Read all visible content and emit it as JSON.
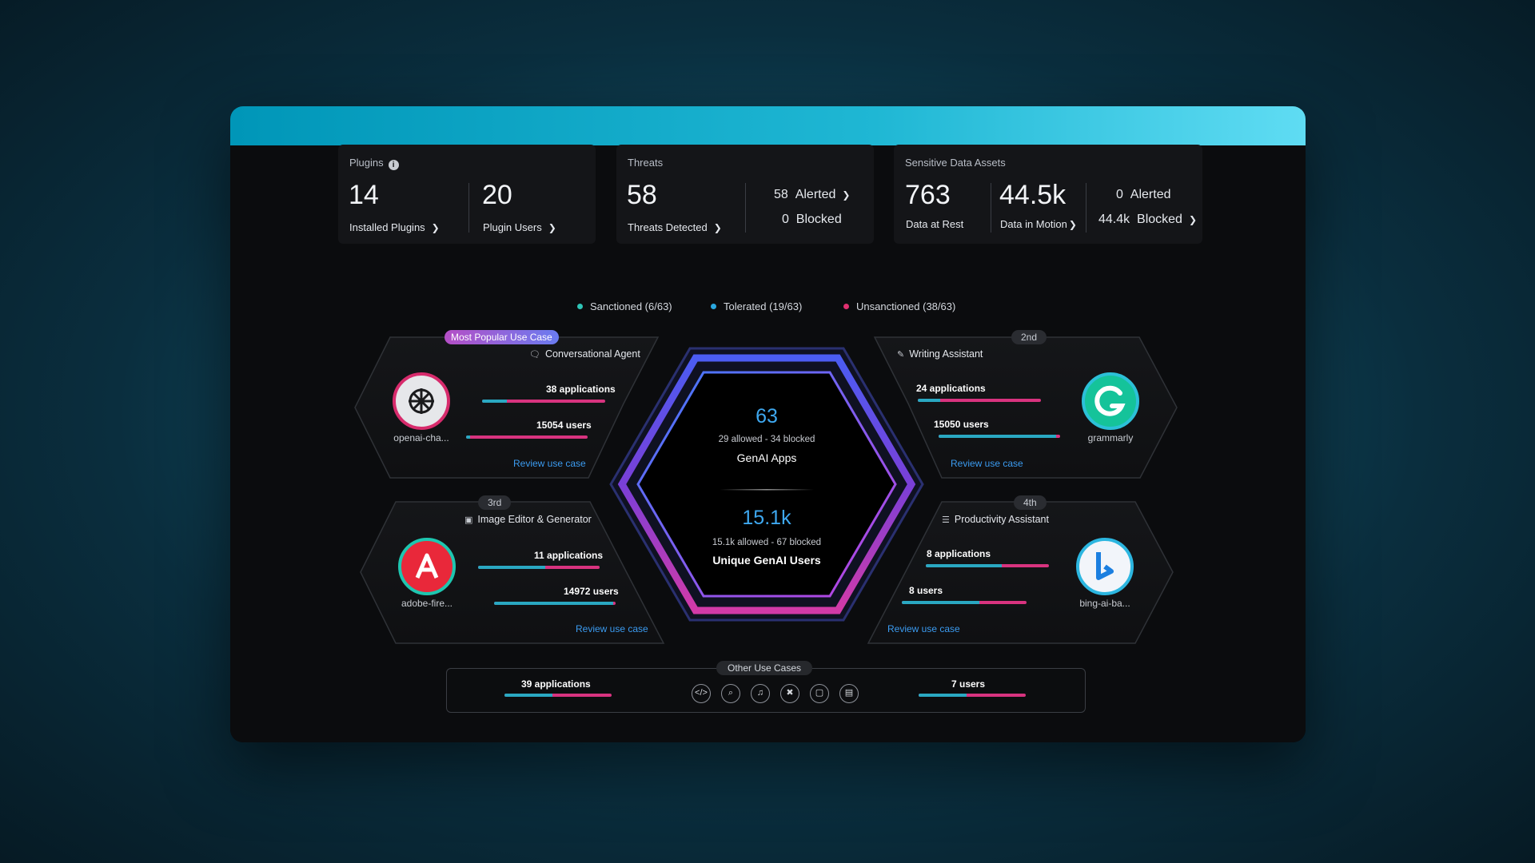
{
  "plugins": {
    "title": "Plugins",
    "installed_value": "14",
    "installed_label": "Installed Plugins",
    "users_value": "20",
    "users_label": "Plugin Users"
  },
  "threats": {
    "title": "Threats",
    "detected_value": "58",
    "detected_label": "Threats Detected",
    "alerted_value": "58",
    "alerted_label": "Alerted",
    "blocked_value": "0",
    "blocked_label": "Blocked"
  },
  "sensitive": {
    "title": "Sensitive Data Assets",
    "rest_value": "763",
    "rest_label": "Data at Rest",
    "motion_value": "44.5k",
    "motion_label": "Data in Motion",
    "alerted_value": "0",
    "alerted_label": "Alerted",
    "blocked_value": "44.4k",
    "blocked_label": "Blocked"
  },
  "legend": {
    "sanctioned": "Sanctioned (6/63)",
    "tolerated": "Tolerated (19/63)",
    "unsanctioned": "Unsanctioned (38/63)",
    "colors": {
      "sanctioned": "#2ec4b6",
      "tolerated": "#2aa8e0",
      "unsanctioned": "#e0306f"
    }
  },
  "center": {
    "apps_value": "63",
    "apps_detail": "29 allowed - 34 blocked",
    "apps_label": "GenAI Apps",
    "users_value": "15.1k",
    "users_detail": "15.1k allowed - 67 blocked",
    "users_label": "Unique GenAI Users"
  },
  "use_cases": {
    "first": {
      "badge": "Most Popular Use Case",
      "title": "Conversational Agent",
      "icon": "chat-icon",
      "applications": "38 applications",
      "applications_fraction": 0.2,
      "users": "15054 users",
      "users_fraction": 0.03,
      "review": "Review use case",
      "app_name": "openai-cha..."
    },
    "second": {
      "badge": "2nd",
      "title": "Writing Assistant",
      "icon": "pencil-icon",
      "applications": "24 applications",
      "applications_fraction": 0.18,
      "users": "15050 users",
      "users_fraction": 0.97,
      "review": "Review use case",
      "app_name": "grammarly"
    },
    "third": {
      "badge": "3rd",
      "title": "Image Editor & Generator",
      "icon": "image-icon",
      "applications": "11 applications",
      "applications_fraction": 0.55,
      "users": "14972 users",
      "users_fraction": 0.98,
      "review": "Review use case",
      "app_name": "adobe-fire..."
    },
    "fourth": {
      "badge": "4th",
      "title": "Productivity Assistant",
      "icon": "list-icon",
      "applications": "8 applications",
      "applications_fraction": 0.62,
      "users": "8 users",
      "users_fraction": 0.62,
      "review": "Review use case",
      "app_name": "bing-ai-ba..."
    }
  },
  "other": {
    "badge": "Other Use Cases",
    "applications": "39 applications",
    "applications_fraction": 0.45,
    "users": "7 users",
    "users_fraction": 0.45,
    "icons": [
      "code-icon",
      "search-icon",
      "music-icon",
      "tools-icon",
      "video-icon",
      "calendar-icon"
    ]
  }
}
